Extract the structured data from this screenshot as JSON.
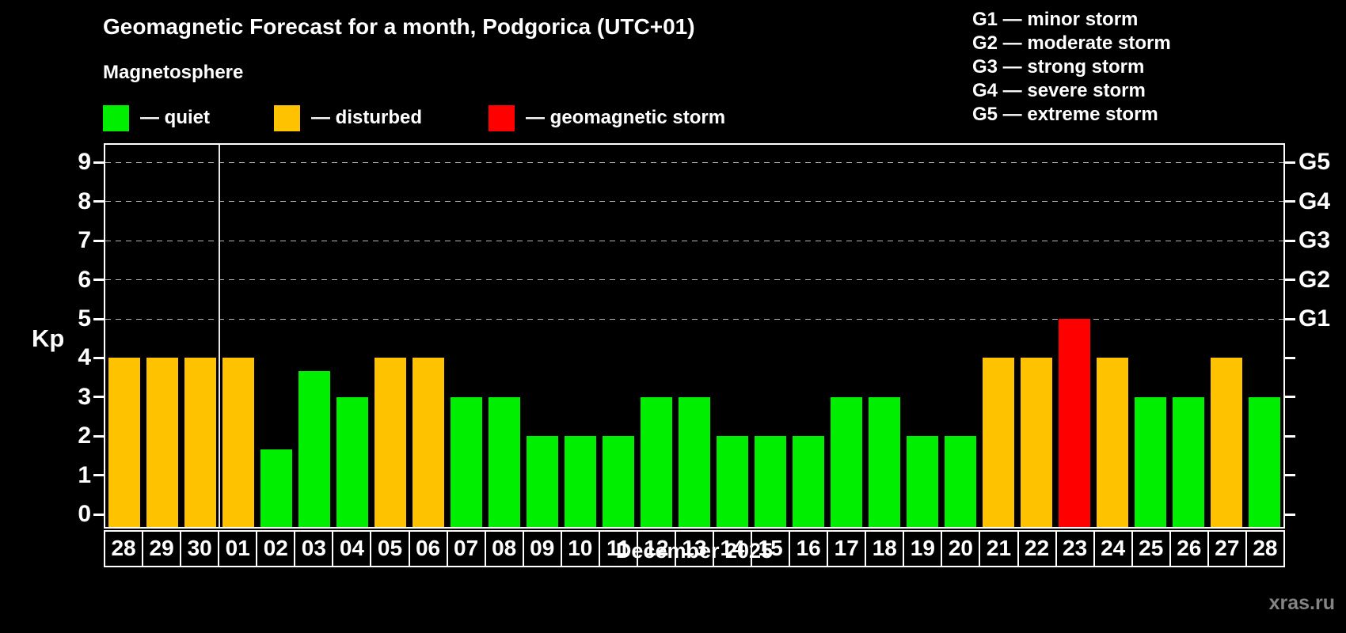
{
  "page": {
    "title": "Geomagnetic Forecast for a month, Podgorica (UTC+01)",
    "subtitle": "Magnetosphere",
    "month_label": "December 2025",
    "watermark": "xras.ru"
  },
  "legend": [
    {
      "label": "— quiet",
      "status": "quiet",
      "color": "#00ee00"
    },
    {
      "label": "— disturbed",
      "status": "disturbed",
      "color": "#ffc200"
    },
    {
      "label": "— geomagnetic storm",
      "status": "storm",
      "color": "#ff0000"
    }
  ],
  "g_legend": [
    {
      "label": "G1 — minor storm"
    },
    {
      "label": "G2 — moderate storm"
    },
    {
      "label": "G3 — strong storm"
    },
    {
      "label": "G4 — severe storm"
    },
    {
      "label": "G5 — extreme storm"
    }
  ],
  "chart_data": {
    "type": "bar",
    "title": "Geomagnetic Forecast for a month, Podgorica (UTC+01)",
    "subtitle": "Magnetosphere",
    "xlabel": "December 2025",
    "ylabel": "Kp",
    "ylim": [
      -0.4,
      9.5
    ],
    "grid": "horizontal dashed gray lines at Kp 5,6,7,8,9",
    "legend_position": "top-left",
    "y_ticks": [
      0,
      1,
      2,
      3,
      4,
      5,
      6,
      7,
      8,
      9
    ],
    "right_axis_labels": [
      {
        "label": "G1",
        "kp": 5
      },
      {
        "label": "G2",
        "kp": 6
      },
      {
        "label": "G3",
        "kp": 7
      },
      {
        "label": "G4",
        "kp": 8
      },
      {
        "label": "G5",
        "kp": 9
      }
    ],
    "categories": [
      "28",
      "29",
      "30",
      "01",
      "02",
      "03",
      "04",
      "05",
      "06",
      "07",
      "08",
      "09",
      "10",
      "11",
      "12",
      "13",
      "14",
      "15",
      "16",
      "17",
      "18",
      "19",
      "20",
      "21",
      "22",
      "23",
      "24",
      "25",
      "26",
      "27",
      "28"
    ],
    "values": [
      4,
      4,
      4,
      4,
      1.67,
      3.67,
      3,
      4,
      4,
      3,
      3,
      2,
      2,
      2,
      3,
      3,
      2,
      2,
      2,
      3,
      3,
      2,
      2,
      4,
      4,
      5,
      4,
      3,
      3,
      4,
      3
    ],
    "statuses": [
      "disturbed",
      "disturbed",
      "disturbed",
      "disturbed",
      "quiet",
      "quiet",
      "quiet",
      "disturbed",
      "disturbed",
      "quiet",
      "quiet",
      "quiet",
      "quiet",
      "quiet",
      "quiet",
      "quiet",
      "quiet",
      "quiet",
      "quiet",
      "quiet",
      "quiet",
      "quiet",
      "quiet",
      "disturbed",
      "disturbed",
      "storm",
      "disturbed",
      "quiet",
      "quiet",
      "disturbed",
      "quiet"
    ],
    "month_separator_after_index": 2,
    "colors": {
      "quiet": "#00ee00",
      "disturbed": "#ffc200",
      "storm": "#ff0000"
    }
  }
}
